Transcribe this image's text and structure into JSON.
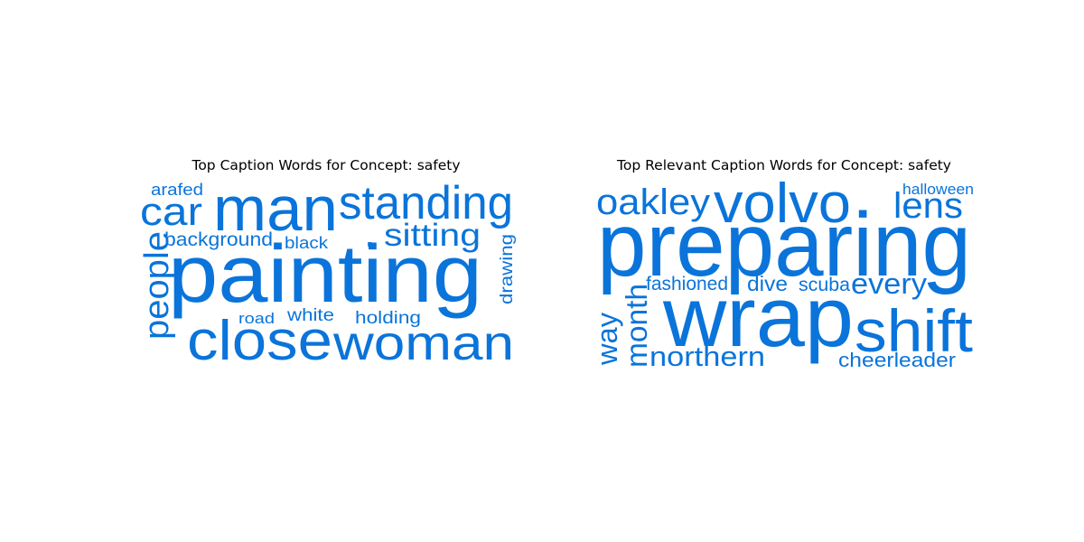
{
  "color": "#0a74da",
  "panels": [
    {
      "title": "Top Caption Words for Concept: safety",
      "words": [
        "painting",
        "man",
        "standing",
        "close",
        "woman",
        "car",
        "people",
        "sitting",
        "background",
        "arafed",
        "black",
        "white",
        "holding",
        "road",
        "drawing",
        "."
      ]
    },
    {
      "title": "Top Relevant Caption Words for Concept: safety",
      "words": [
        "preparing",
        "wrap",
        "volvo",
        "shift",
        "oakley",
        "lens",
        "every",
        "month",
        "northern",
        "way",
        "fashioned",
        "dive",
        "scuba",
        "cheerleader",
        "halloween",
        "."
      ]
    }
  ]
}
